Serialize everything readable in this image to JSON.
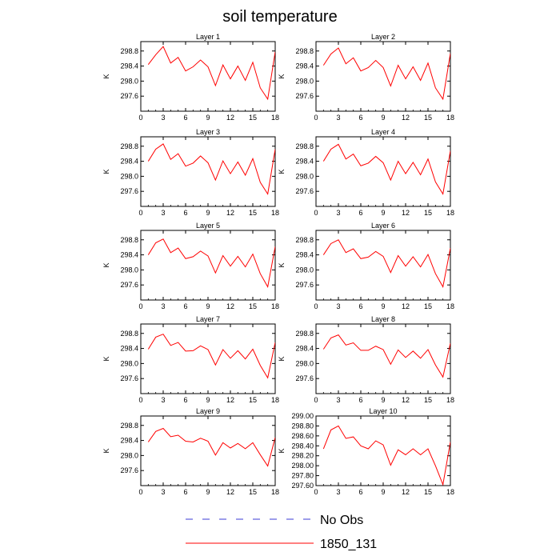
{
  "title": "soil temperature",
  "legend": [
    {
      "label": "No Obs",
      "color": "#3b3bd6",
      "dash": true
    },
    {
      "label": "1850_131",
      "color": "#ff0000",
      "dash": false
    }
  ],
  "chart_data": [
    {
      "type": "line",
      "title": "Layer 1",
      "ylabel": "K",
      "x": [
        1,
        2,
        3,
        4,
        5,
        6,
        7,
        8,
        9,
        10,
        11,
        12,
        13,
        14,
        15,
        16,
        17,
        18
      ],
      "xlim": [
        0,
        18
      ],
      "xticks": [
        "0",
        "3",
        "6",
        "9",
        "12",
        "15",
        "18"
      ],
      "ylim": [
        297.2,
        299.05
      ],
      "yticks": [
        297.6,
        298.0,
        298.4,
        298.8
      ],
      "yticklabels": [
        "297.6",
        "298.0",
        "298.4",
        "298.8"
      ],
      "series": [
        {
          "name": "1850_131",
          "color": "#ff0000",
          "values": [
            298.44,
            298.7,
            298.92,
            298.48,
            298.63,
            298.27,
            298.38,
            298.56,
            298.38,
            297.88,
            298.43,
            298.06,
            298.4,
            298.02,
            298.5,
            297.82,
            297.52,
            298.78
          ]
        }
      ]
    },
    {
      "type": "line",
      "title": "Layer 2",
      "ylabel": "K",
      "x": [
        1,
        2,
        3,
        4,
        5,
        6,
        7,
        8,
        9,
        10,
        11,
        12,
        13,
        14,
        15,
        16,
        17,
        18
      ],
      "xlim": [
        0,
        18
      ],
      "xticks": [
        "0",
        "3",
        "6",
        "9",
        "12",
        "15",
        "18"
      ],
      "ylim": [
        297.2,
        299.05
      ],
      "yticks": [
        297.6,
        298.0,
        298.4,
        298.8
      ],
      "yticklabels": [
        "297.6",
        "298.0",
        "298.4",
        "298.8"
      ],
      "series": [
        {
          "name": "1850_131",
          "color": "#ff0000",
          "values": [
            298.42,
            298.72,
            298.88,
            298.46,
            298.62,
            298.27,
            298.36,
            298.55,
            298.36,
            297.87,
            298.42,
            298.06,
            298.38,
            298.02,
            298.48,
            297.82,
            297.52,
            298.74
          ]
        }
      ]
    },
    {
      "type": "line",
      "title": "Layer 3",
      "ylabel": "K",
      "x": [
        1,
        2,
        3,
        4,
        5,
        6,
        7,
        8,
        9,
        10,
        11,
        12,
        13,
        14,
        15,
        16,
        17,
        18
      ],
      "xlim": [
        0,
        18
      ],
      "xticks": [
        "0",
        "3",
        "6",
        "9",
        "12",
        "15",
        "18"
      ],
      "ylim": [
        297.2,
        299.05
      ],
      "yticks": [
        297.6,
        298.0,
        298.4,
        298.8
      ],
      "yticklabels": [
        "297.6",
        "298.0",
        "298.4",
        "298.8"
      ],
      "series": [
        {
          "name": "1850_131",
          "color": "#ff0000",
          "values": [
            298.4,
            298.72,
            298.86,
            298.45,
            298.6,
            298.27,
            298.35,
            298.54,
            298.36,
            297.9,
            298.41,
            298.07,
            298.38,
            298.03,
            298.47,
            297.84,
            297.53,
            298.72
          ]
        }
      ]
    },
    {
      "type": "line",
      "title": "Layer 4",
      "ylabel": "K",
      "x": [
        1,
        2,
        3,
        4,
        5,
        6,
        7,
        8,
        9,
        10,
        11,
        12,
        13,
        14,
        15,
        16,
        17,
        18
      ],
      "xlim": [
        0,
        18
      ],
      "xticks": [
        "0",
        "3",
        "6",
        "9",
        "12",
        "15",
        "18"
      ],
      "ylim": [
        297.2,
        299.05
      ],
      "yticks": [
        297.6,
        298.0,
        298.4,
        298.8
      ],
      "yticklabels": [
        "297.6",
        "298.0",
        "298.4",
        "298.8"
      ],
      "series": [
        {
          "name": "1850_131",
          "color": "#ff0000",
          "values": [
            298.4,
            298.72,
            298.85,
            298.46,
            298.59,
            298.28,
            298.35,
            298.53,
            298.36,
            297.9,
            298.4,
            298.07,
            298.37,
            298.04,
            298.46,
            297.85,
            297.53,
            298.68
          ]
        }
      ]
    },
    {
      "type": "line",
      "title": "Layer 5",
      "ylabel": "K",
      "x": [
        1,
        2,
        3,
        4,
        5,
        6,
        7,
        8,
        9,
        10,
        11,
        12,
        13,
        14,
        15,
        16,
        17,
        18
      ],
      "xlim": [
        0,
        18
      ],
      "xticks": [
        "0",
        "3",
        "6",
        "9",
        "12",
        "15",
        "18"
      ],
      "ylim": [
        297.2,
        299.05
      ],
      "yticks": [
        297.6,
        298.0,
        298.4,
        298.8
      ],
      "yticklabels": [
        "297.6",
        "298.0",
        "298.4",
        "298.8"
      ],
      "series": [
        {
          "name": "1850_131",
          "color": "#ff0000",
          "values": [
            298.4,
            298.72,
            298.82,
            298.46,
            298.58,
            298.3,
            298.35,
            298.5,
            298.37,
            297.92,
            298.38,
            298.1,
            298.36,
            298.08,
            298.42,
            297.9,
            297.55,
            298.62
          ]
        }
      ]
    },
    {
      "type": "line",
      "title": "Layer 6",
      "ylabel": "K",
      "x": [
        1,
        2,
        3,
        4,
        5,
        6,
        7,
        8,
        9,
        10,
        11,
        12,
        13,
        14,
        15,
        16,
        17,
        18
      ],
      "xlim": [
        0,
        18
      ],
      "xticks": [
        "0",
        "3",
        "6",
        "9",
        "12",
        "15",
        "18"
      ],
      "ylim": [
        297.2,
        299.05
      ],
      "yticks": [
        297.6,
        298.0,
        298.4,
        298.8
      ],
      "yticklabels": [
        "297.6",
        "298.0",
        "298.4",
        "298.8"
      ],
      "series": [
        {
          "name": "1850_131",
          "color": "#ff0000",
          "values": [
            298.4,
            298.7,
            298.8,
            298.46,
            298.56,
            298.3,
            298.34,
            298.49,
            298.36,
            297.93,
            298.38,
            298.1,
            298.35,
            298.08,
            298.41,
            297.9,
            297.55,
            298.58
          ]
        }
      ]
    },
    {
      "type": "line",
      "title": "Layer 7",
      "ylabel": "K",
      "x": [
        1,
        2,
        3,
        4,
        5,
        6,
        7,
        8,
        9,
        10,
        11,
        12,
        13,
        14,
        15,
        16,
        17,
        18
      ],
      "xlim": [
        0,
        18
      ],
      "xticks": [
        "0",
        "3",
        "6",
        "9",
        "12",
        "15",
        "18"
      ],
      "ylim": [
        297.2,
        299.05
      ],
      "yticks": [
        297.6,
        298.0,
        298.4,
        298.8
      ],
      "yticklabels": [
        "297.6",
        "298.0",
        "298.4",
        "298.8"
      ],
      "series": [
        {
          "name": "1850_131",
          "color": "#ff0000",
          "values": [
            298.38,
            298.7,
            298.78,
            298.48,
            298.56,
            298.33,
            298.34,
            298.47,
            298.37,
            297.96,
            298.37,
            298.14,
            298.34,
            298.12,
            298.38,
            297.95,
            297.62,
            298.56
          ]
        }
      ]
    },
    {
      "type": "line",
      "title": "Layer 8",
      "ylabel": "K",
      "x": [
        1,
        2,
        3,
        4,
        5,
        6,
        7,
        8,
        9,
        10,
        11,
        12,
        13,
        14,
        15,
        16,
        17,
        18
      ],
      "xlim": [
        0,
        18
      ],
      "xticks": [
        "0",
        "3",
        "6",
        "9",
        "12",
        "15",
        "18"
      ],
      "ylim": [
        297.2,
        299.05
      ],
      "yticks": [
        297.6,
        298.0,
        298.4,
        298.8
      ],
      "yticklabels": [
        "297.6",
        "298.0",
        "298.4",
        "298.8"
      ],
      "series": [
        {
          "name": "1850_131",
          "color": "#ff0000",
          "values": [
            298.38,
            298.68,
            298.76,
            298.49,
            298.55,
            298.35,
            298.35,
            298.46,
            298.37,
            297.98,
            298.36,
            298.16,
            298.33,
            298.14,
            298.37,
            297.96,
            297.64,
            298.54
          ]
        }
      ]
    },
    {
      "type": "line",
      "title": "Layer 9",
      "ylabel": "K",
      "x": [
        1,
        2,
        3,
        4,
        5,
        6,
        7,
        8,
        9,
        10,
        11,
        12,
        13,
        14,
        15,
        16,
        17,
        18
      ],
      "xlim": [
        0,
        18
      ],
      "xticks": [
        "0",
        "3",
        "6",
        "9",
        "12",
        "15",
        "18"
      ],
      "ylim": [
        297.2,
        299.05
      ],
      "yticks": [
        297.6,
        298.0,
        298.4,
        298.8
      ],
      "yticklabels": [
        "297.6",
        "298.0",
        "298.4",
        "298.8"
      ],
      "series": [
        {
          "name": "1850_131",
          "color": "#ff0000",
          "values": [
            298.36,
            298.64,
            298.72,
            298.5,
            298.54,
            298.38,
            298.36,
            298.46,
            298.38,
            298.01,
            298.34,
            298.2,
            298.32,
            298.18,
            298.34,
            298.02,
            297.72,
            298.48
          ]
        }
      ]
    },
    {
      "type": "line",
      "title": "Layer 10",
      "ylabel": "K",
      "x": [
        1,
        2,
        3,
        4,
        5,
        6,
        7,
        8,
        9,
        10,
        11,
        12,
        13,
        14,
        15,
        16,
        17,
        18
      ],
      "xlim": [
        0,
        18
      ],
      "xticks": [
        "0",
        "3",
        "6",
        "9",
        "12",
        "15",
        "18"
      ],
      "ylim": [
        297.6,
        299.0
      ],
      "yticks": [
        297.6,
        297.8,
        298.0,
        298.2,
        298.4,
        298.6,
        298.8,
        299.0
      ],
      "yticklabels": [
        "297.60",
        "297.80",
        "298.00",
        "298.20",
        "298.40",
        "298.60",
        "298.80",
        "299.00"
      ],
      "series": [
        {
          "name": "1850_131",
          "color": "#ff0000",
          "values": [
            298.34,
            298.72,
            298.8,
            298.55,
            298.58,
            298.4,
            298.34,
            298.5,
            298.42,
            298.01,
            298.32,
            298.22,
            298.34,
            298.22,
            298.34,
            298.0,
            297.62,
            298.48
          ]
        }
      ]
    }
  ]
}
